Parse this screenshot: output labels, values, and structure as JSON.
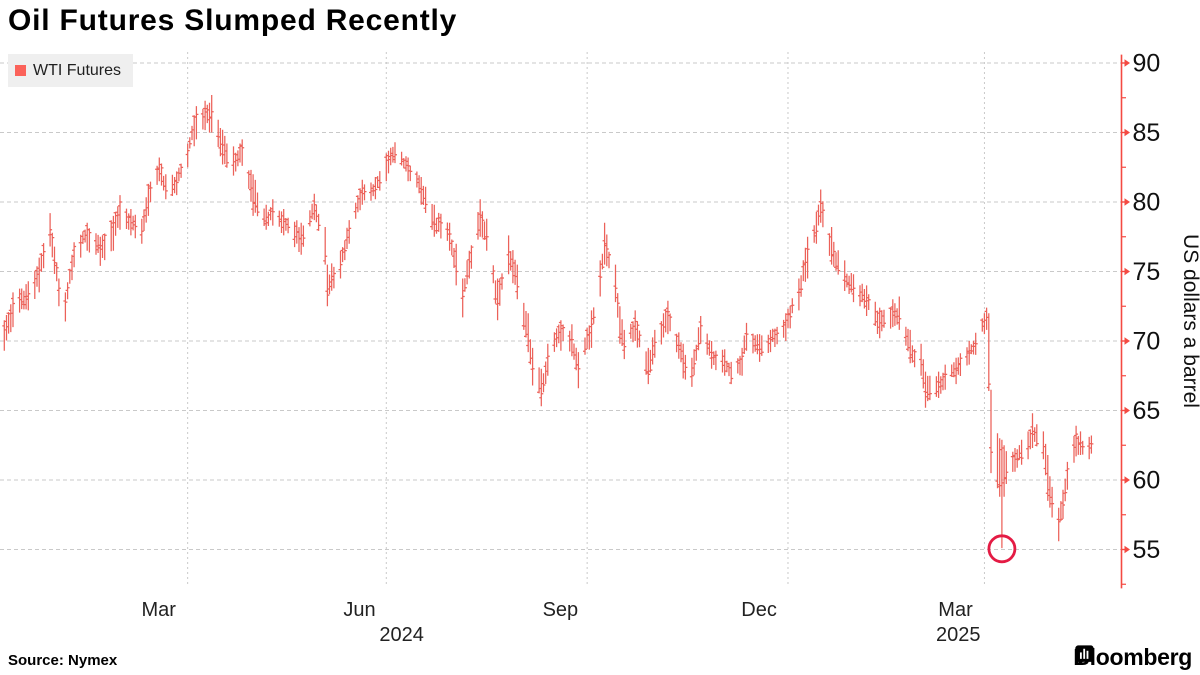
{
  "header": {
    "title": "Oil Futures Slumped Recently"
  },
  "legend": {
    "label": "WTI Futures",
    "swatch_color": "#fb625a"
  },
  "footer": {
    "source": "Source: Nymex",
    "brand": "Bloomberg"
  },
  "colors": {
    "bar": "#ec6159",
    "axis": "#f44a42",
    "grid": "#c9c9c9",
    "annotation_circle": "#e41b44",
    "tick_text": "#111111",
    "month_text": "#222222",
    "legend_bg": "#efefef"
  },
  "chart_data": {
    "type": "ohlc",
    "title": "Oil Futures Slumped Recently",
    "ylabel": "US dollars a barrel",
    "yticks": [
      55,
      60,
      65,
      70,
      75,
      80,
      85,
      90
    ],
    "y_minor_tick_step": 2.5,
    "ylim": [
      52.2,
      90.6
    ],
    "grid": true,
    "legend_position": "top-left",
    "x_gridline_dates": [
      "2024-04-01",
      "2024-07-01",
      "2024-10-01",
      "2025-01-01",
      "2025-04-01"
    ],
    "x_month_labels": [
      {
        "text": "Mar",
        "date": "2024-03-16"
      },
      {
        "text": "Jun",
        "date": "2024-06-16"
      },
      {
        "text": "Sep",
        "date": "2024-09-16"
      },
      {
        "text": "Dec",
        "date": "2024-12-16"
      },
      {
        "text": "Mar",
        "date": "2025-03-16"
      }
    ],
    "x_year_labels": [
      {
        "text": "2024",
        "date": "2024-07-08"
      },
      {
        "text": "2025",
        "date": "2025-03-20"
      }
    ],
    "annotation": {
      "shape": "circle",
      "date": "2025-04-09",
      "price": 55.05
    },
    "series": [
      {
        "name": "WTI Futures",
        "points_format": [
          "date",
          "low",
          "high",
          "close"
        ],
        "points": [
          [
            "2024-01-02",
            69.6,
            72.0,
            70.5
          ],
          [
            "2024-01-08",
            69.3,
            71.5,
            70.8
          ],
          [
            "2024-01-12",
            71.0,
            73.5,
            72.7
          ],
          [
            "2024-01-19",
            72.2,
            74.3,
            73.4
          ],
          [
            "2024-01-24",
            73.5,
            76.0,
            75.1
          ],
          [
            "2024-01-29",
            76.8,
            79.2,
            78.0
          ],
          [
            "2024-02-02",
            72.5,
            74.5,
            73.8
          ],
          [
            "2024-02-05",
            71.4,
            73.5,
            72.8
          ],
          [
            "2024-02-09",
            75.3,
            77.1,
            76.8
          ],
          [
            "2024-02-15",
            76.5,
            78.5,
            78.0
          ],
          [
            "2024-02-21",
            75.4,
            77.5,
            76.6
          ],
          [
            "2024-02-27",
            76.5,
            79.0,
            78.5
          ],
          [
            "2024-03-01",
            78.0,
            80.5,
            80.0
          ],
          [
            "2024-03-06",
            77.6,
            79.5,
            78.5
          ],
          [
            "2024-03-11",
            77.0,
            78.8,
            77.9
          ],
          [
            "2024-03-14",
            79.0,
            81.3,
            81.0
          ],
          [
            "2024-03-19",
            81.5,
            83.2,
            82.7
          ],
          [
            "2024-03-22",
            80.2,
            82.0,
            80.8
          ],
          [
            "2024-03-27",
            80.5,
            82.2,
            81.4
          ],
          [
            "2024-04-01",
            82.5,
            84.2,
            83.7
          ],
          [
            "2024-04-05",
            84.5,
            86.9,
            86.3
          ],
          [
            "2024-04-12",
            85.0,
            87.7,
            86.5
          ],
          [
            "2024-04-17",
            82.7,
            85.2,
            83.4
          ],
          [
            "2024-04-22",
            81.9,
            84.0,
            82.9
          ],
          [
            "2024-04-26",
            82.6,
            84.5,
            83.9
          ],
          [
            "2024-05-01",
            79.0,
            82.0,
            79.9
          ],
          [
            "2024-05-07",
            78.0,
            79.8,
            78.5
          ],
          [
            "2024-05-10",
            78.3,
            80.2,
            79.3
          ],
          [
            "2024-05-15",
            77.6,
            79.5,
            78.6
          ],
          [
            "2024-05-23",
            76.2,
            78.5,
            77.0
          ],
          [
            "2024-05-29",
            78.7,
            80.6,
            79.8
          ],
          [
            "2024-06-03",
            75.5,
            78.2,
            76.1
          ],
          [
            "2024-06-04",
            72.5,
            75.5,
            73.3
          ],
          [
            "2024-06-10",
            74.5,
            76.5,
            75.5
          ],
          [
            "2024-06-14",
            77.0,
            78.7,
            78.1
          ],
          [
            "2024-06-20",
            79.8,
            81.6,
            81.0
          ],
          [
            "2024-06-26",
            80.2,
            81.8,
            80.9
          ],
          [
            "2024-07-01",
            81.5,
            83.5,
            83.0
          ],
          [
            "2024-07-05",
            82.8,
            84.3,
            83.4
          ],
          [
            "2024-07-11",
            81.5,
            83.2,
            82.6
          ],
          [
            "2024-07-17",
            79.8,
            81.8,
            80.9
          ],
          [
            "2024-07-23",
            77.5,
            79.8,
            78.4
          ],
          [
            "2024-07-30",
            76.5,
            78.5,
            77.7
          ],
          [
            "2024-08-02",
            74.0,
            77.0,
            75.0
          ],
          [
            "2024-08-05",
            71.7,
            74.5,
            73.2
          ],
          [
            "2024-08-08",
            74.5,
            76.5,
            75.7
          ],
          [
            "2024-08-13",
            77.5,
            80.2,
            78.9
          ],
          [
            "2024-08-16",
            76.5,
            78.8,
            77.5
          ],
          [
            "2024-08-21",
            71.5,
            74.5,
            72.7
          ],
          [
            "2024-08-26",
            74.8,
            77.6,
            76.4
          ],
          [
            "2024-08-30",
            73.0,
            75.5,
            73.9
          ],
          [
            "2024-09-04",
            69.2,
            72.0,
            70.0
          ],
          [
            "2024-09-06",
            66.8,
            69.5,
            68.0
          ],
          [
            "2024-09-10",
            65.3,
            68.0,
            66.2
          ],
          [
            "2024-09-13",
            67.5,
            69.8,
            68.9
          ],
          [
            "2024-09-19",
            69.3,
            71.5,
            70.9
          ],
          [
            "2024-09-24",
            68.9,
            71.2,
            70.1
          ],
          [
            "2024-09-27",
            66.6,
            69.2,
            68.0
          ],
          [
            "2024-10-03",
            69.5,
            72.2,
            71.2
          ],
          [
            "2024-10-07",
            73.2,
            75.8,
            74.6
          ],
          [
            "2024-10-09",
            75.5,
            78.5,
            77.0
          ],
          [
            "2024-10-14",
            72.8,
            75.5,
            73.8
          ],
          [
            "2024-10-16",
            69.8,
            72.5,
            70.5
          ],
          [
            "2024-10-18",
            68.7,
            70.8,
            69.6
          ],
          [
            "2024-10-23",
            70.0,
            72.2,
            71.4
          ],
          [
            "2024-10-29",
            66.9,
            69.5,
            67.6
          ],
          [
            "2024-11-01",
            68.8,
            70.8,
            69.9
          ],
          [
            "2024-11-07",
            70.5,
            72.9,
            72.1
          ],
          [
            "2024-11-14",
            67.3,
            69.8,
            68.4
          ],
          [
            "2024-11-18",
            66.7,
            68.8,
            67.5
          ],
          [
            "2024-11-22",
            69.8,
            71.8,
            71.1
          ],
          [
            "2024-11-27",
            68.0,
            70.0,
            68.8
          ],
          [
            "2024-12-03",
            67.5,
            69.4,
            68.5
          ],
          [
            "2024-12-06",
            66.9,
            68.5,
            67.3
          ],
          [
            "2024-12-11",
            67.5,
            69.5,
            68.9
          ],
          [
            "2024-12-13",
            69.3,
            71.3,
            70.5
          ],
          [
            "2024-12-19",
            68.5,
            70.5,
            69.4
          ],
          [
            "2024-12-24",
            69.2,
            70.8,
            70.1
          ],
          [
            "2024-12-31",
            70.0,
            72.0,
            71.5
          ],
          [
            "2025-01-06",
            72.2,
            74.5,
            73.5
          ],
          [
            "2025-01-10",
            74.5,
            77.5,
            76.6
          ],
          [
            "2025-01-14",
            77.0,
            79.3,
            77.9
          ],
          [
            "2025-01-16",
            78.5,
            80.9,
            79.9
          ],
          [
            "2025-01-21",
            75.5,
            78.2,
            76.2
          ],
          [
            "2025-01-27",
            73.6,
            75.8,
            74.3
          ],
          [
            "2025-01-31",
            72.8,
            74.8,
            73.8
          ],
          [
            "2025-02-06",
            71.8,
            74.0,
            72.9
          ],
          [
            "2025-02-12",
            70.2,
            72.4,
            71.3
          ],
          [
            "2025-02-18",
            71.0,
            73.0,
            72.1
          ],
          [
            "2025-02-21",
            70.8,
            73.2,
            71.6
          ],
          [
            "2025-02-26",
            68.4,
            70.8,
            69.0
          ],
          [
            "2025-03-03",
            67.5,
            69.8,
            68.3
          ],
          [
            "2025-03-05",
            65.2,
            67.8,
            66.3
          ],
          [
            "2025-03-11",
            65.9,
            67.8,
            66.7
          ],
          [
            "2025-03-14",
            66.5,
            68.3,
            67.6
          ],
          [
            "2025-03-19",
            66.9,
            68.8,
            67.9
          ],
          [
            "2025-03-25",
            68.3,
            70.0,
            69.3
          ],
          [
            "2025-03-28",
            69.0,
            70.6,
            69.8
          ],
          [
            "2025-04-01",
            70.5,
            72.0,
            71.5
          ],
          [
            "2025-04-02",
            70.8,
            72.4,
            71.7
          ],
          [
            "2025-04-03",
            66.4,
            72.0,
            66.9
          ],
          [
            "2025-04-04",
            60.5,
            66.5,
            62.0
          ],
          [
            "2025-04-08",
            58.8,
            63.0,
            59.6
          ],
          [
            "2025-04-09",
            55.1,
            62.9,
            62.3
          ],
          [
            "2025-04-10",
            58.8,
            62.5,
            60.1
          ],
          [
            "2025-04-15",
            60.6,
            62.3,
            61.5
          ],
          [
            "2025-04-21",
            61.5,
            63.5,
            62.4
          ],
          [
            "2025-04-23",
            62.3,
            64.8,
            63.5
          ],
          [
            "2025-04-28",
            61.5,
            63.5,
            62.4
          ],
          [
            "2025-04-30",
            58.5,
            61.8,
            59.3
          ],
          [
            "2025-05-02",
            57.3,
            59.5,
            58.3
          ],
          [
            "2025-05-05",
            55.6,
            58.0,
            57.0
          ],
          [
            "2025-05-07",
            57.2,
            59.3,
            58.2
          ],
          [
            "2025-05-09",
            59.3,
            61.3,
            60.8
          ],
          [
            "2025-05-13",
            61.7,
            63.9,
            63.3
          ],
          [
            "2025-05-15",
            61.8,
            63.5,
            62.4
          ],
          [
            "2025-05-19",
            61.5,
            63.1,
            62.3
          ],
          [
            "2025-05-20",
            61.9,
            63.2,
            62.6
          ]
        ]
      }
    ]
  }
}
